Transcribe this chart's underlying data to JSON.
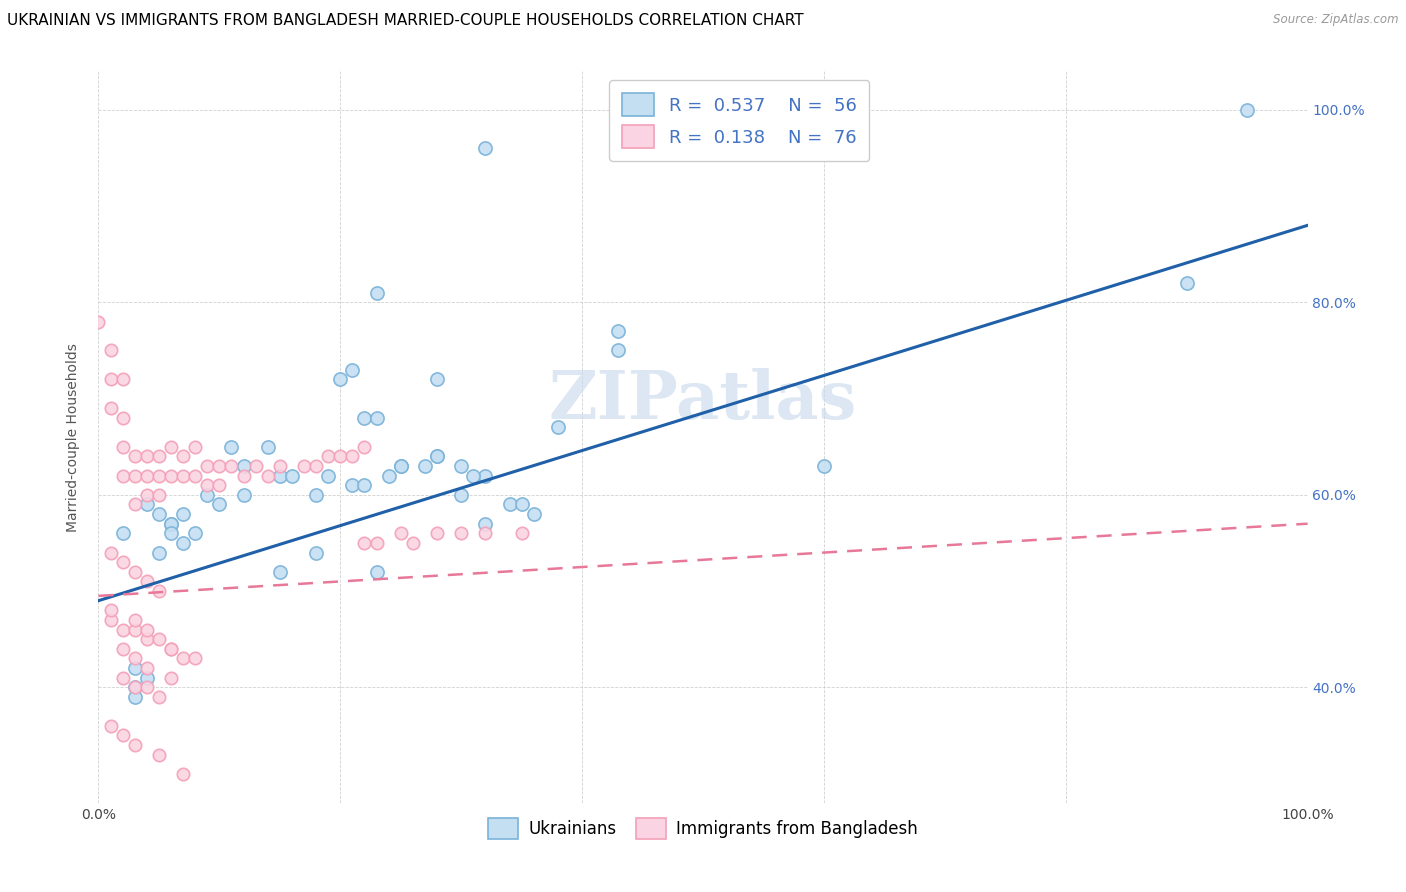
{
  "title": "UKRAINIAN VS IMMIGRANTS FROM BANGLADESH MARRIED-COUPLE HOUSEHOLDS CORRELATION CHART",
  "source": "Source: ZipAtlas.com",
  "ylabel": "Married-couple Households",
  "watermark": "ZIPatlas",
  "legend_r1": "R = 0.537",
  "legend_n1": "N = 56",
  "legend_r2": "R = 0.138",
  "legend_n2": "N = 76",
  "blue_color": "#7ab3d9",
  "blue_fill": "#c5dff2",
  "pink_color": "#f4a0b8",
  "pink_fill": "#fad4e2",
  "line_blue": "#2060a8",
  "line_pink": "#e87898",
  "line_pink_dashed": "#d4a0b0",
  "blue_scatter_x": [
    0.32,
    0.43,
    0.43,
    0.38,
    0.23,
    0.28,
    0.02,
    0.04,
    0.05,
    0.06,
    0.08,
    0.06,
    0.06,
    0.05,
    0.07,
    0.09,
    0.11,
    0.12,
    0.14,
    0.15,
    0.16,
    0.1,
    0.12,
    0.18,
    0.21,
    0.19,
    0.22,
    0.24,
    0.25,
    0.3,
    0.32,
    0.31,
    0.34,
    0.35,
    0.2,
    0.21,
    0.22,
    0.23,
    0.25,
    0.27,
    0.28,
    0.3,
    0.32,
    0.36,
    0.9,
    0.6,
    0.95,
    0.28,
    0.03,
    0.03,
    0.04,
    0.03,
    0.07,
    0.15,
    0.18,
    0.23
  ],
  "blue_scatter_y": [
    0.96,
    0.75,
    0.77,
    0.67,
    0.81,
    0.72,
    0.56,
    0.59,
    0.58,
    0.57,
    0.56,
    0.57,
    0.56,
    0.54,
    0.58,
    0.6,
    0.65,
    0.63,
    0.65,
    0.62,
    0.62,
    0.59,
    0.6,
    0.6,
    0.61,
    0.62,
    0.61,
    0.62,
    0.63,
    0.63,
    0.62,
    0.62,
    0.59,
    0.59,
    0.72,
    0.73,
    0.68,
    0.68,
    0.63,
    0.63,
    0.64,
    0.6,
    0.57,
    0.58,
    0.82,
    0.63,
    1.0,
    0.64,
    0.42,
    0.4,
    0.41,
    0.39,
    0.55,
    0.52,
    0.54,
    0.52
  ],
  "pink_scatter_x": [
    0.0,
    0.01,
    0.01,
    0.01,
    0.02,
    0.02,
    0.02,
    0.02,
    0.03,
    0.03,
    0.03,
    0.04,
    0.04,
    0.04,
    0.05,
    0.05,
    0.05,
    0.06,
    0.06,
    0.07,
    0.07,
    0.08,
    0.08,
    0.09,
    0.09,
    0.1,
    0.1,
    0.11,
    0.12,
    0.13,
    0.14,
    0.15,
    0.17,
    0.18,
    0.19,
    0.2,
    0.21,
    0.22,
    0.22,
    0.23,
    0.25,
    0.26,
    0.28,
    0.3,
    0.32,
    0.01,
    0.02,
    0.03,
    0.04,
    0.05,
    0.01,
    0.02,
    0.03,
    0.04,
    0.06,
    0.07,
    0.02,
    0.03,
    0.04,
    0.05,
    0.01,
    0.02,
    0.03,
    0.05,
    0.07,
    0.02,
    0.03,
    0.04,
    0.06,
    0.01,
    0.03,
    0.04,
    0.05,
    0.06,
    0.08,
    0.35
  ],
  "pink_scatter_y": [
    0.78,
    0.75,
    0.72,
    0.69,
    0.72,
    0.68,
    0.65,
    0.62,
    0.64,
    0.62,
    0.59,
    0.64,
    0.62,
    0.6,
    0.64,
    0.62,
    0.6,
    0.65,
    0.62,
    0.64,
    0.62,
    0.65,
    0.62,
    0.63,
    0.61,
    0.63,
    0.61,
    0.63,
    0.62,
    0.63,
    0.62,
    0.63,
    0.63,
    0.63,
    0.64,
    0.64,
    0.64,
    0.65,
    0.55,
    0.55,
    0.56,
    0.55,
    0.56,
    0.56,
    0.56,
    0.54,
    0.53,
    0.52,
    0.51,
    0.5,
    0.47,
    0.46,
    0.46,
    0.45,
    0.44,
    0.43,
    0.41,
    0.4,
    0.4,
    0.39,
    0.36,
    0.35,
    0.34,
    0.33,
    0.31,
    0.44,
    0.43,
    0.42,
    0.41,
    0.48,
    0.47,
    0.46,
    0.45,
    0.44,
    0.43,
    0.56
  ],
  "blue_trend_x": [
    0.0,
    1.0
  ],
  "blue_trend_y": [
    0.49,
    0.88
  ],
  "pink_trend_x": [
    0.0,
    1.0
  ],
  "pink_trend_y": [
    0.495,
    0.57
  ],
  "xlim": [
    0.0,
    1.0
  ],
  "ylim": [
    0.28,
    1.04
  ],
  "xtick_positions": [
    0.0,
    0.2,
    0.4,
    0.6,
    0.8,
    1.0
  ],
  "xticklabels": [
    "0.0%",
    "",
    "",
    "",
    "",
    "100.0%"
  ],
  "ytick_positions": [
    0.4,
    0.6,
    0.8,
    1.0
  ],
  "yticklabels_right": [
    "40.0%",
    "60.0%",
    "80.0%",
    "100.0%"
  ],
  "title_fontsize": 11,
  "axis_label_fontsize": 10,
  "tick_fontsize": 10,
  "legend_fontsize": 13,
  "watermark_fontsize": 48,
  "watermark_color": "#c5d8ec",
  "watermark_alpha": 0.6,
  "right_tick_color": "#4472c4",
  "grid_color": "#cccccc"
}
